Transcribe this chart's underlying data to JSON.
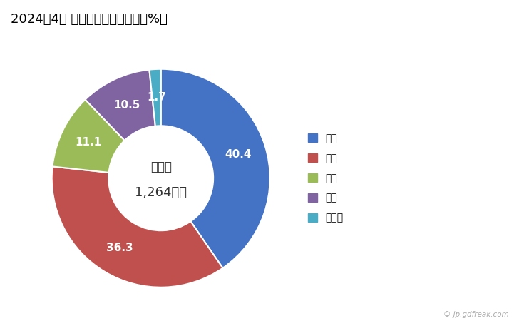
{
  "title": "2024年4月 輸出相手国のシェア（%）",
  "labels": [
    "韓国",
    "タイ",
    "台湾",
    "香港",
    "その他"
  ],
  "values": [
    40.4,
    36.3,
    11.1,
    10.5,
    1.7
  ],
  "colors": [
    "#4472C4",
    "#C0504D",
    "#9BBB59",
    "#8064A2",
    "#4BACC6"
  ],
  "center_text_line1": "総　額",
  "center_text_line2": "1,264万円",
  "watermark": "© jp.gdfreak.com",
  "bg_color": "#FFFFFF",
  "label_fontsize": 11,
  "title_fontsize": 13,
  "legend_fontsize": 10
}
